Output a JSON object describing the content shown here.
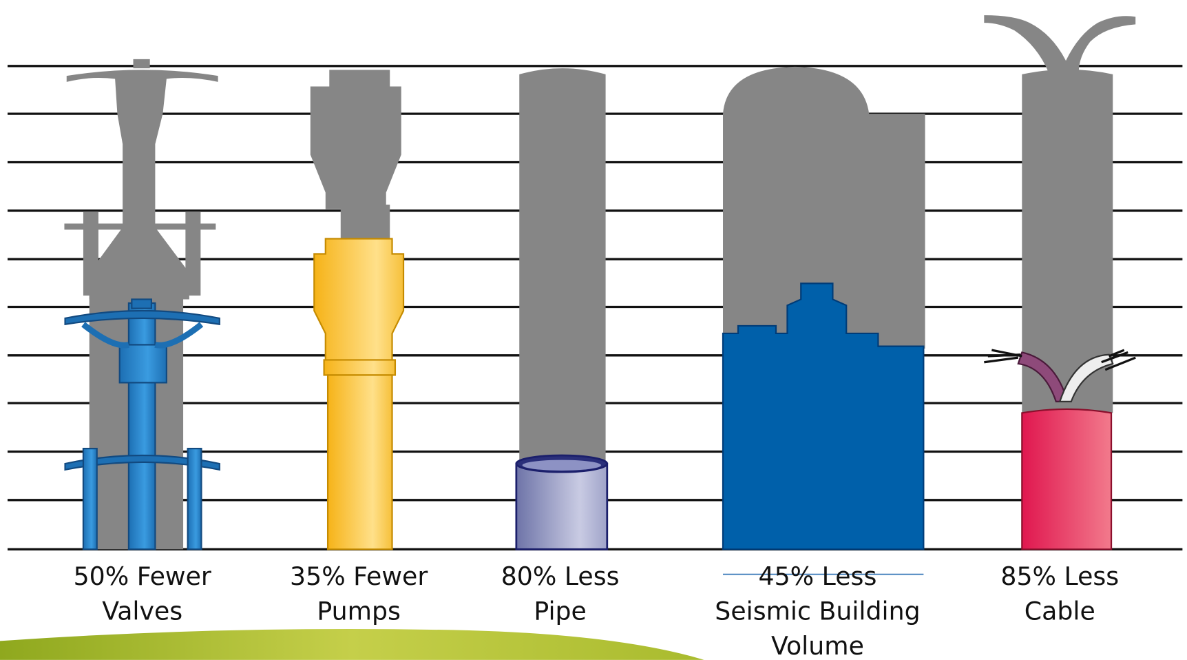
{
  "items": [
    {
      "lines": [
        "50% Fewer",
        "Valves"
      ]
    },
    {
      "lines": [
        "35% Fewer",
        "Pumps"
      ]
    },
    {
      "lines": [
        "80% Less",
        "Pipe"
      ]
    },
    {
      "lines": [
        "45% Less",
        "Seismic Building",
        "Volume"
      ]
    },
    {
      "lines": [
        "85% Less",
        "Cable"
      ]
    }
  ]
}
